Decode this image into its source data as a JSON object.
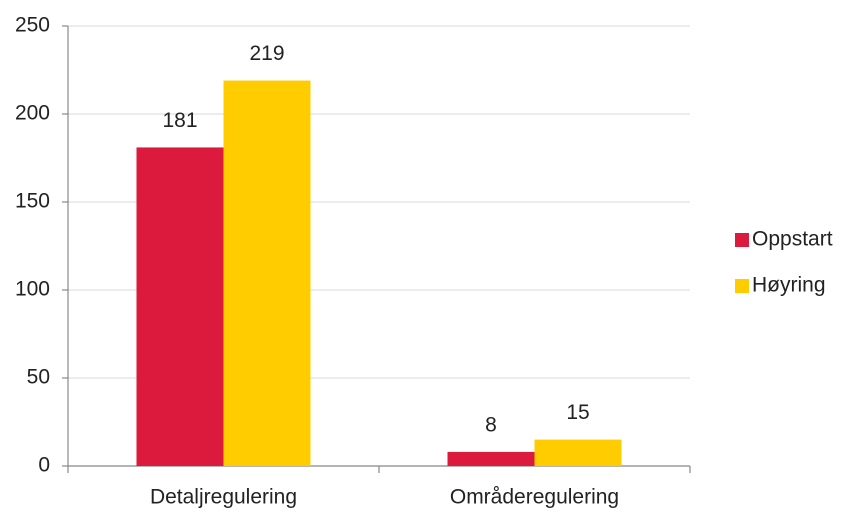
{
  "chart_data": {
    "type": "bar",
    "categories": [
      "Detaljregulering",
      "Områderegulering"
    ],
    "series": [
      {
        "name": "Oppstart",
        "color": "#dc1a3e",
        "values": [
          181,
          8
        ]
      },
      {
        "name": "Høyring",
        "color": "#ffcc00",
        "values": [
          219,
          15
        ]
      }
    ],
    "ylim": [
      0,
      250
    ],
    "yticks": [
      0,
      50,
      100,
      150,
      200,
      250
    ],
    "grid": true,
    "legend": "right"
  }
}
